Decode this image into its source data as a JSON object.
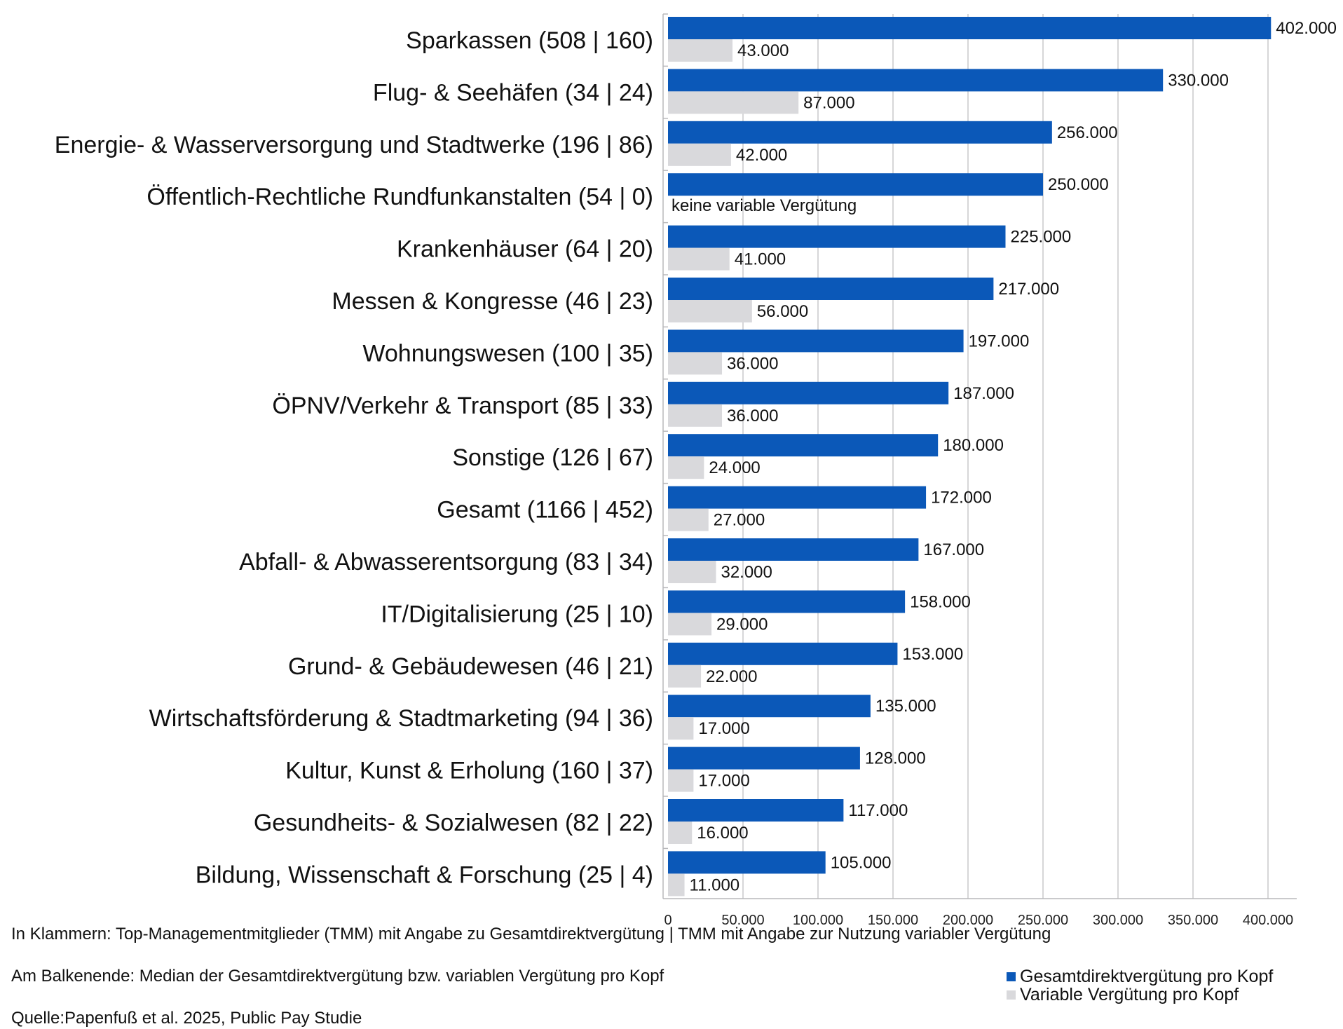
{
  "chart_data": {
    "type": "bar",
    "orientation": "horizontal",
    "categories": [
      "Sparkassen (508 | 160)",
      "Flug- & Seehäfen (34 | 24)",
      "Energie- & Wasserversorgung und Stadtwerke  (196 | 86)",
      "Öffentlich-Rechtliche Rundfunkanstalten (54 | 0)",
      "Krankenhäuser (64 | 20)",
      "Messen & Kongresse (46 | 23)",
      "Wohnungswesen (100 | 35)",
      "ÖPNV/Verkehr & Transport (85 | 33)",
      "Sonstige (126 | 67)",
      "Gesamt (1166 | 452)",
      "Abfall- & Abwasserentsorgung (83 | 34)",
      "IT/Digitalisierung (25 | 10)",
      "Grund- & Gebäudewesen (46 | 21)",
      "Wirtschaftsförderung & Stadtmarketing (94 | 36)",
      "Kultur, Kunst & Erholung (160 | 37)",
      "Gesundheits- & Sozialwesen (82 | 22)",
      "Bildung, Wissenschaft & Forschung (25 | 4)"
    ],
    "series": [
      {
        "name": "Gesamtdirektvergütung pro Kopf",
        "color": "#0b58b8",
        "values": [
          402000,
          330000,
          256000,
          250000,
          225000,
          217000,
          197000,
          187000,
          180000,
          172000,
          167000,
          158000,
          153000,
          135000,
          128000,
          117000,
          105000
        ],
        "labels": [
          "402.000",
          "330.000",
          "256.000",
          "250.000",
          "225.000",
          "217.000",
          "197.000",
          "187.000",
          "180.000",
          "172.000",
          "167.000",
          "158.000",
          "153.000",
          "135.000",
          "128.000",
          "117.000",
          "105.000"
        ]
      },
      {
        "name": "Variable Vergütung pro Kopf",
        "color": "#d9d9dc",
        "values": [
          43000,
          87000,
          42000,
          0,
          41000,
          56000,
          36000,
          36000,
          24000,
          27000,
          32000,
          29000,
          22000,
          17000,
          17000,
          16000,
          11000
        ],
        "labels": [
          "43.000",
          "87.000",
          "42.000",
          "keine variable Vergütung",
          "41.000",
          "56.000",
          "36.000",
          "36.000",
          "24.000",
          "27.000",
          "32.000",
          "29.000",
          "22.000",
          "17.000",
          "17.000",
          "16.000",
          "11.000"
        ]
      }
    ],
    "xlim": [
      0,
      400000
    ],
    "xticks": [
      0,
      50000,
      100000,
      150000,
      200000,
      250000,
      300000,
      350000,
      400000
    ],
    "xtick_labels": [
      "0",
      "50.000",
      "100.000",
      "150.000",
      "200.000",
      "250.000",
      "300.000",
      "350.000",
      "400.000"
    ],
    "grid": "vertical",
    "legend_position": "bottom-right",
    "gridline_color": "#c9c9cc"
  },
  "notes": {
    "line1": "In Klammern: Top-Managementmitglieder (TMM) mit Angabe zu Gesamtdirektvergütung | TMM mit Angabe zur Nutzung variabler Vergütung",
    "line2": "Am Balkenende: Median der Gesamtdirektvergütung bzw. variablen Vergütung pro Kopf",
    "source": "Quelle:Papenfuß et al. 2025, Public Pay Studie"
  }
}
